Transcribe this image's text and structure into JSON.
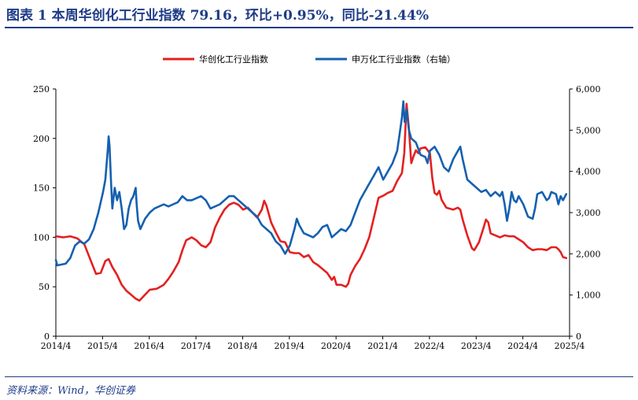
{
  "header": {
    "title": "图表 1 本周华创化工行业指数 79.16，环比+0.95%，同比-21.44%"
  },
  "footer": {
    "source": "资料来源：Wind，华创证券"
  },
  "chart_data": {
    "type": "line",
    "title": "",
    "xlabel": "",
    "ylabel_left": "",
    "ylabel_right": "",
    "x_categories": [
      "2014/4",
      "2015/4",
      "2016/4",
      "2017/4",
      "2018/4",
      "2019/4",
      "2020/4",
      "2021/4",
      "2022/4",
      "2023/4",
      "2024/4",
      "2025/4"
    ],
    "ylim_left": [
      0,
      250
    ],
    "yticks_left": [
      "0",
      "50",
      "100",
      "150",
      "200",
      "250"
    ],
    "ylim_right": [
      0,
      6000
    ],
    "yticks_right": [
      "0",
      "1,000",
      "2,000",
      "3,000",
      "4,000",
      "5,000",
      "6,000"
    ],
    "legend_position": "top-center",
    "series": [
      {
        "name": "华创化工行业指数",
        "axis": "left",
        "color": "#e32020",
        "points": [
          [
            2014.29,
            101
          ],
          [
            2014.45,
            100
          ],
          [
            2014.6,
            101
          ],
          [
            2014.75,
            99
          ],
          [
            2014.9,
            93
          ],
          [
            2015.05,
            75
          ],
          [
            2015.15,
            63
          ],
          [
            2015.25,
            64
          ],
          [
            2015.35,
            76
          ],
          [
            2015.42,
            78
          ],
          [
            2015.5,
            70
          ],
          [
            2015.6,
            62
          ],
          [
            2015.7,
            52
          ],
          [
            2015.8,
            46
          ],
          [
            2015.9,
            42
          ],
          [
            2016.0,
            38
          ],
          [
            2016.08,
            36
          ],
          [
            2016.2,
            42
          ],
          [
            2016.3,
            47
          ],
          [
            2016.45,
            48
          ],
          [
            2016.6,
            52
          ],
          [
            2016.7,
            58
          ],
          [
            2016.8,
            65
          ],
          [
            2016.92,
            75
          ],
          [
            2017.0,
            87
          ],
          [
            2017.08,
            97
          ],
          [
            2017.2,
            100
          ],
          [
            2017.3,
            97
          ],
          [
            2017.4,
            92
          ],
          [
            2017.5,
            90
          ],
          [
            2017.6,
            95
          ],
          [
            2017.7,
            110
          ],
          [
            2017.8,
            120
          ],
          [
            2017.9,
            128
          ],
          [
            2018.0,
            133
          ],
          [
            2018.1,
            135
          ],
          [
            2018.2,
            133
          ],
          [
            2018.3,
            128
          ],
          [
            2018.4,
            130
          ],
          [
            2018.5,
            125
          ],
          [
            2018.6,
            120
          ],
          [
            2018.7,
            128
          ],
          [
            2018.75,
            137
          ],
          [
            2018.8,
            132
          ],
          [
            2018.9,
            115
          ],
          [
            2019.0,
            105
          ],
          [
            2019.1,
            96
          ],
          [
            2019.2,
            95
          ],
          [
            2019.3,
            85
          ],
          [
            2019.4,
            84
          ],
          [
            2019.5,
            84
          ],
          [
            2019.6,
            80
          ],
          [
            2019.7,
            82
          ],
          [
            2019.8,
            75
          ],
          [
            2019.9,
            72
          ],
          [
            2020.0,
            68
          ],
          [
            2020.1,
            64
          ],
          [
            2020.2,
            57
          ],
          [
            2020.25,
            60
          ],
          [
            2020.3,
            52
          ],
          [
            2020.4,
            52
          ],
          [
            2020.5,
            50
          ],
          [
            2020.55,
            53
          ],
          [
            2020.6,
            62
          ],
          [
            2020.7,
            71
          ],
          [
            2020.8,
            78
          ],
          [
            2020.9,
            88
          ],
          [
            2021.0,
            100
          ],
          [
            2021.1,
            120
          ],
          [
            2021.2,
            140
          ],
          [
            2021.3,
            142
          ],
          [
            2021.4,
            145
          ],
          [
            2021.5,
            147
          ],
          [
            2021.6,
            157
          ],
          [
            2021.7,
            165
          ],
          [
            2021.75,
            185
          ],
          [
            2021.8,
            235
          ],
          [
            2021.85,
            210
          ],
          [
            2021.9,
            175
          ],
          [
            2021.95,
            182
          ],
          [
            2022.0,
            188
          ],
          [
            2022.05,
            185
          ],
          [
            2022.1,
            190
          ],
          [
            2022.2,
            191
          ],
          [
            2022.3,
            185
          ],
          [
            2022.35,
            160
          ],
          [
            2022.4,
            145
          ],
          [
            2022.45,
            143
          ],
          [
            2022.5,
            147
          ],
          [
            2022.55,
            138
          ],
          [
            2022.65,
            130
          ],
          [
            2022.8,
            128
          ],
          [
            2022.9,
            130
          ],
          [
            2022.95,
            128
          ],
          [
            2023.0,
            118
          ],
          [
            2023.1,
            102
          ],
          [
            2023.2,
            89
          ],
          [
            2023.25,
            87
          ],
          [
            2023.35,
            95
          ],
          [
            2023.45,
            110
          ],
          [
            2023.5,
            118
          ],
          [
            2023.55,
            115
          ],
          [
            2023.6,
            104
          ],
          [
            2023.7,
            102
          ],
          [
            2023.8,
            100
          ],
          [
            2023.9,
            102
          ],
          [
            2024.0,
            101
          ],
          [
            2024.1,
            101
          ],
          [
            2024.2,
            98
          ],
          [
            2024.3,
            95
          ],
          [
            2024.4,
            90
          ],
          [
            2024.5,
            87
          ],
          [
            2024.6,
            88
          ],
          [
            2024.7,
            88
          ],
          [
            2024.8,
            87
          ],
          [
            2024.9,
            90
          ],
          [
            2025.0,
            90
          ],
          [
            2025.05,
            88
          ],
          [
            2025.1,
            85
          ],
          [
            2025.15,
            80
          ],
          [
            2025.22,
            79
          ]
        ]
      },
      {
        "name": "申万化工行业指数（右轴）",
        "axis": "right",
        "color": "#1560b0",
        "points": [
          [
            2014.29,
            1850
          ],
          [
            2014.32,
            1720
          ],
          [
            2014.5,
            1760
          ],
          [
            2014.6,
            1900
          ],
          [
            2014.7,
            2200
          ],
          [
            2014.8,
            2300
          ],
          [
            2014.9,
            2250
          ],
          [
            2015.0,
            2350
          ],
          [
            2015.1,
            2600
          ],
          [
            2015.2,
            3000
          ],
          [
            2015.3,
            3500
          ],
          [
            2015.35,
            3800
          ],
          [
            2015.4,
            4500
          ],
          [
            2015.42,
            4850
          ],
          [
            2015.44,
            4600
          ],
          [
            2015.47,
            3800
          ],
          [
            2015.5,
            3100
          ],
          [
            2015.55,
            3600
          ],
          [
            2015.6,
            3300
          ],
          [
            2015.65,
            3500
          ],
          [
            2015.7,
            3100
          ],
          [
            2015.75,
            2600
          ],
          [
            2015.8,
            2700
          ],
          [
            2015.85,
            3100
          ],
          [
            2015.9,
            3300
          ],
          [
            2015.95,
            3400
          ],
          [
            2016.0,
            3600
          ],
          [
            2016.02,
            3200
          ],
          [
            2016.05,
            2800
          ],
          [
            2016.1,
            2600
          ],
          [
            2016.2,
            2850
          ],
          [
            2016.3,
            3000
          ],
          [
            2016.4,
            3100
          ],
          [
            2016.5,
            3150
          ],
          [
            2016.6,
            3200
          ],
          [
            2016.7,
            3150
          ],
          [
            2016.8,
            3200
          ],
          [
            2016.9,
            3250
          ],
          [
            2017.0,
            3400
          ],
          [
            2017.1,
            3300
          ],
          [
            2017.2,
            3300
          ],
          [
            2017.3,
            3350
          ],
          [
            2017.4,
            3400
          ],
          [
            2017.5,
            3300
          ],
          [
            2017.6,
            3100
          ],
          [
            2017.7,
            3150
          ],
          [
            2017.8,
            3200
          ],
          [
            2017.9,
            3300
          ],
          [
            2018.0,
            3400
          ],
          [
            2018.1,
            3400
          ],
          [
            2018.2,
            3300
          ],
          [
            2018.3,
            3200
          ],
          [
            2018.4,
            3100
          ],
          [
            2018.5,
            3000
          ],
          [
            2018.6,
            2900
          ],
          [
            2018.7,
            2700
          ],
          [
            2018.8,
            2600
          ],
          [
            2018.9,
            2500
          ],
          [
            2019.0,
            2300
          ],
          [
            2019.05,
            2250
          ],
          [
            2019.1,
            2200
          ],
          [
            2019.2,
            2000
          ],
          [
            2019.3,
            2200
          ],
          [
            2019.4,
            2600
          ],
          [
            2019.45,
            2850
          ],
          [
            2019.5,
            2700
          ],
          [
            2019.6,
            2500
          ],
          [
            2019.7,
            2450
          ],
          [
            2019.8,
            2400
          ],
          [
            2019.9,
            2500
          ],
          [
            2020.0,
            2650
          ],
          [
            2020.1,
            2700
          ],
          [
            2020.15,
            2550
          ],
          [
            2020.2,
            2400
          ],
          [
            2020.3,
            2500
          ],
          [
            2020.4,
            2600
          ],
          [
            2020.5,
            2550
          ],
          [
            2020.6,
            2700
          ],
          [
            2020.7,
            3000
          ],
          [
            2020.8,
            3300
          ],
          [
            2020.9,
            3500
          ],
          [
            2021.0,
            3700
          ],
          [
            2021.1,
            3900
          ],
          [
            2021.2,
            4100
          ],
          [
            2021.3,
            3800
          ],
          [
            2021.4,
            4000
          ],
          [
            2021.5,
            4200
          ],
          [
            2021.6,
            4500
          ],
          [
            2021.65,
            4900
          ],
          [
            2021.7,
            5300
          ],
          [
            2021.73,
            5700
          ],
          [
            2021.76,
            5200
          ],
          [
            2021.8,
            5500
          ],
          [
            2021.85,
            5000
          ],
          [
            2021.9,
            4800
          ],
          [
            2022.0,
            4700
          ],
          [
            2022.1,
            4400
          ],
          [
            2022.2,
            4350
          ],
          [
            2022.25,
            4200
          ],
          [
            2022.3,
            4500
          ],
          [
            2022.4,
            4600
          ],
          [
            2022.5,
            4400
          ],
          [
            2022.6,
            4100
          ],
          [
            2022.7,
            4000
          ],
          [
            2022.8,
            4300
          ],
          [
            2022.9,
            4500
          ],
          [
            2022.95,
            4600
          ],
          [
            2023.0,
            4300
          ],
          [
            2023.1,
            3800
          ],
          [
            2023.2,
            3700
          ],
          [
            2023.3,
            3600
          ],
          [
            2023.4,
            3500
          ],
          [
            2023.5,
            3550
          ],
          [
            2023.6,
            3400
          ],
          [
            2023.7,
            3500
          ],
          [
            2023.8,
            3400
          ],
          [
            2023.85,
            3500
          ],
          [
            2023.9,
            3200
          ],
          [
            2023.95,
            2800
          ],
          [
            2024.0,
            3100
          ],
          [
            2024.05,
            3500
          ],
          [
            2024.1,
            3300
          ],
          [
            2024.15,
            3250
          ],
          [
            2024.2,
            3400
          ],
          [
            2024.3,
            3200
          ],
          [
            2024.4,
            2900
          ],
          [
            2024.5,
            2850
          ],
          [
            2024.55,
            3100
          ],
          [
            2024.6,
            3450
          ],
          [
            2024.7,
            3500
          ],
          [
            2024.8,
            3300
          ],
          [
            2024.85,
            3350
          ],
          [
            2024.9,
            3500
          ],
          [
            2025.0,
            3450
          ],
          [
            2025.05,
            3200
          ],
          [
            2025.1,
            3400
          ],
          [
            2025.15,
            3300
          ],
          [
            2025.22,
            3450
          ]
        ]
      }
    ]
  },
  "colors": {
    "title": "#1f3c88",
    "red_series": "#e32020",
    "blue_series": "#1560b0"
  }
}
